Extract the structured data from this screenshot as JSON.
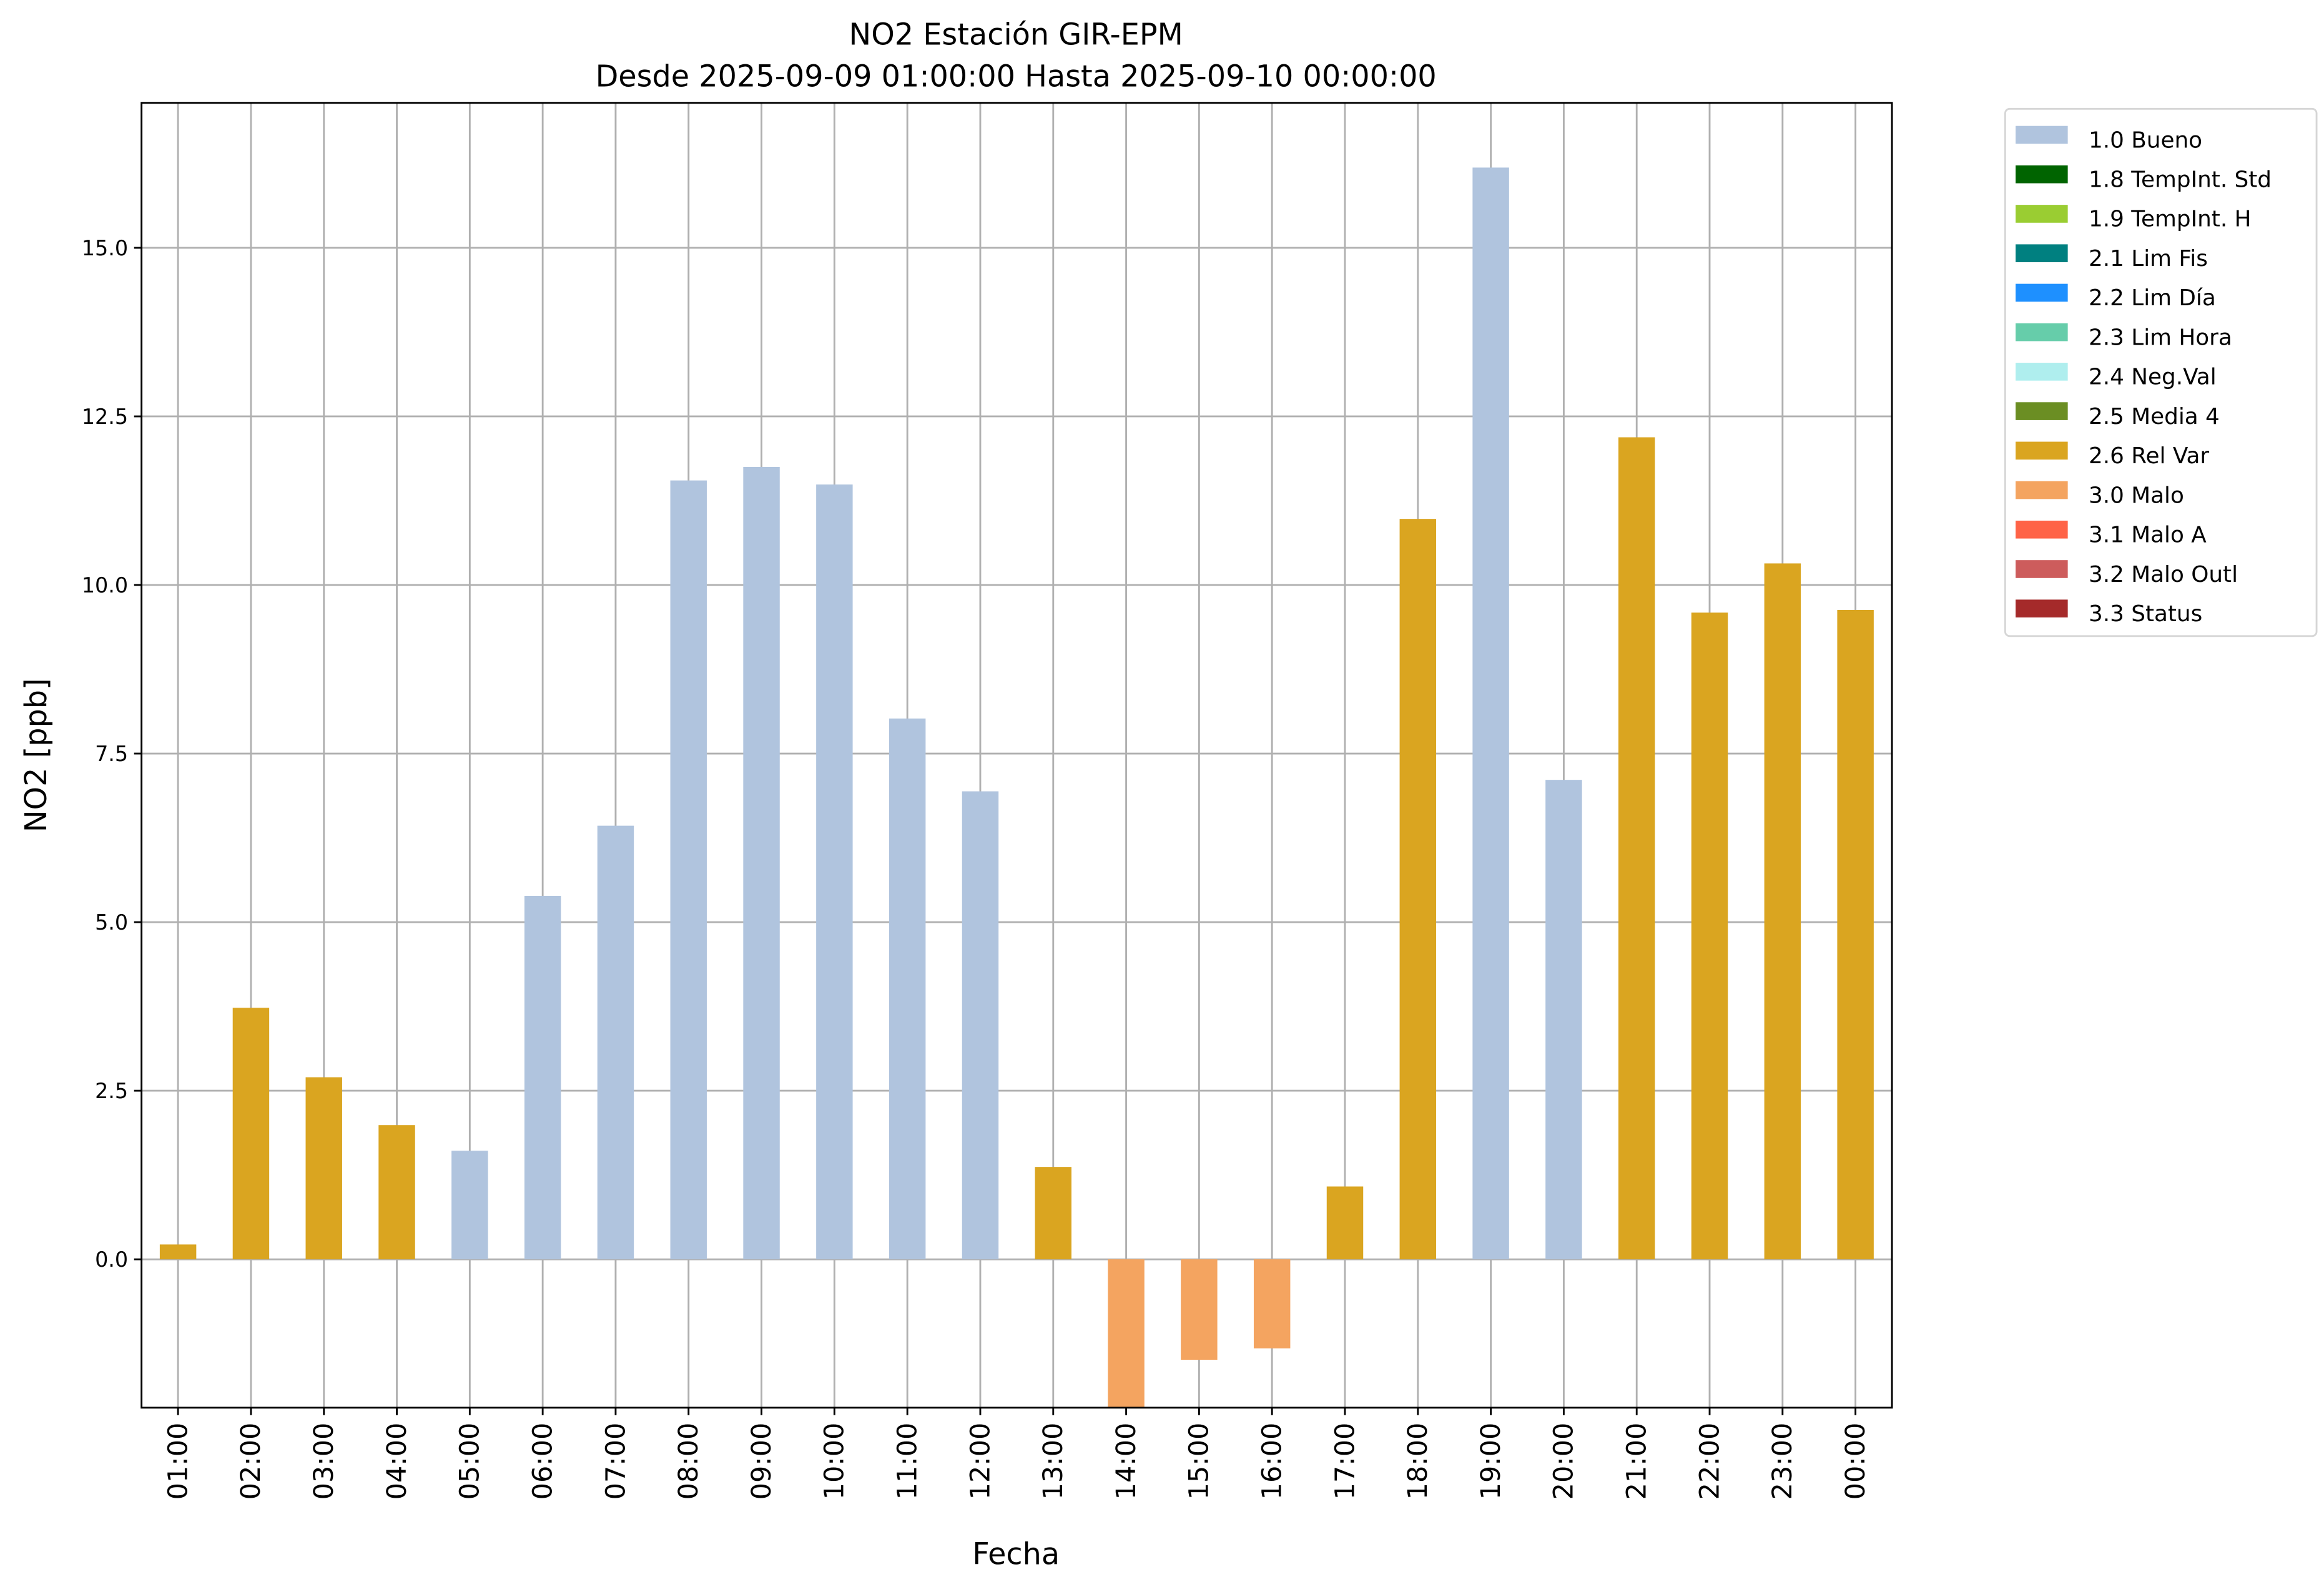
{
  "chart_data": {
    "type": "bar",
    "title": "NO2 Estación GIR-EPM",
    "subtitle": "Desde 2025-09-09 01:00:00 Hasta 2025-09-10 00:00:00",
    "xlabel": "Fecha",
    "ylabel": "NO2 [ppb]",
    "ylim": [
      -2.2,
      17.15
    ],
    "yticks": [
      0.0,
      2.5,
      5.0,
      7.5,
      10.0,
      12.5,
      15.0
    ],
    "ytick_labels": [
      "0.0",
      "2.5",
      "5.0",
      "7.5",
      "10.0",
      "12.5",
      "15.0"
    ],
    "grid": true,
    "legend_placement": "outside-top-right",
    "categories": [
      "01:00",
      "02:00",
      "03:00",
      "04:00",
      "05:00",
      "06:00",
      "07:00",
      "08:00",
      "09:00",
      "10:00",
      "11:00",
      "12:00",
      "13:00",
      "14:00",
      "15:00",
      "16:00",
      "17:00",
      "18:00",
      "19:00",
      "20:00",
      "21:00",
      "22:00",
      "23:00",
      "00:00"
    ],
    "values": [
      0.22,
      3.73,
      2.7,
      1.99,
      1.61,
      5.39,
      6.43,
      11.55,
      11.75,
      11.49,
      8.02,
      6.94,
      1.37,
      -2.5,
      -1.49,
      -1.32,
      1.08,
      10.98,
      16.19,
      7.11,
      12.19,
      9.59,
      10.32,
      9.63
    ],
    "flags": [
      "2.6 Rel Var",
      "2.6 Rel Var",
      "2.6 Rel Var",
      "2.6 Rel Var",
      "1.0 Bueno",
      "1.0 Bueno",
      "1.0 Bueno",
      "1.0 Bueno",
      "1.0 Bueno",
      "1.0 Bueno",
      "1.0 Bueno",
      "1.0 Bueno",
      "2.6 Rel Var",
      "3.0 Malo",
      "3.0 Malo",
      "3.0 Malo",
      "2.6 Rel Var",
      "2.6 Rel Var",
      "1.0 Bueno",
      "1.0 Bueno",
      "2.6 Rel Var",
      "2.6 Rel Var",
      "2.6 Rel Var",
      "2.6 Rel Var"
    ],
    "legend": [
      {
        "label": "1.0 Bueno",
        "color": "#b0c4de"
      },
      {
        "label": "1.8 TempInt. Std",
        "color": "#006400"
      },
      {
        "label": "1.9 TempInt. H",
        "color": "#9acd32"
      },
      {
        "label": "2.1 Lim Fis",
        "color": "#008080"
      },
      {
        "label": "2.2 Lim Día",
        "color": "#1e90ff"
      },
      {
        "label": "2.3 Lim Hora",
        "color": "#66cdaa"
      },
      {
        "label": "2.4 Neg.Val",
        "color": "#afeeee"
      },
      {
        "label": "2.5 Media 4",
        "color": "#6b8e23"
      },
      {
        "label": "2.6 Rel Var",
        "color": "#daa520"
      },
      {
        "label": "3.0 Malo",
        "color": "#f4a460"
      },
      {
        "label": "3.1 Malo A",
        "color": "#ff6347"
      },
      {
        "label": "3.2 Malo Outl",
        "color": "#cd5c5c"
      },
      {
        "label": "3.3 Status",
        "color": "#a52a2a"
      }
    ]
  }
}
